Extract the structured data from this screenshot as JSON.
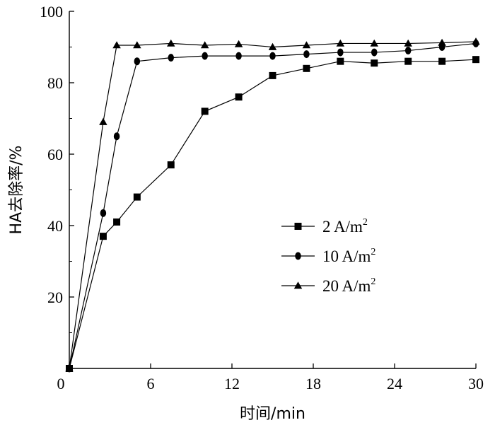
{
  "chart_data": {
    "type": "line",
    "xlabel": "时间/min",
    "ylabel": "HA去除率/%",
    "xlim": [
      0,
      30
    ],
    "ylim": [
      0,
      100
    ],
    "xticks": [
      0,
      6,
      12,
      18,
      24,
      30
    ],
    "yticks": [
      20,
      40,
      60,
      80,
      100
    ],
    "origin_label": "0",
    "grid": false,
    "legend_position": "right-middle",
    "series": [
      {
        "name": "2 A/m",
        "name_sup": "2",
        "marker": "square",
        "x": [
          0,
          2.5,
          3.5,
          5,
          7.5,
          10,
          12.5,
          15,
          17.5,
          20,
          22.5,
          25,
          27.5,
          30
        ],
        "y": [
          0,
          37,
          41,
          48,
          57,
          72,
          76,
          82,
          84,
          86,
          85.5,
          86,
          86,
          86.5
        ]
      },
      {
        "name": "10 A/m",
        "name_sup": "2",
        "marker": "circle",
        "x": [
          0,
          2.5,
          3.5,
          5,
          7.5,
          10,
          12.5,
          15,
          17.5,
          20,
          22.5,
          25,
          27.5,
          30
        ],
        "y": [
          0,
          43.5,
          65,
          86,
          87,
          87.5,
          87.5,
          87.5,
          88,
          88.5,
          88.5,
          89,
          90,
          91
        ]
      },
      {
        "name": "20 A/m",
        "name_sup": "2",
        "marker": "triangle",
        "x": [
          0,
          2.5,
          3.5,
          5,
          7.5,
          10,
          12.5,
          15,
          17.5,
          20,
          22.5,
          25,
          27.5,
          30
        ],
        "y": [
          0,
          69,
          90.5,
          90.5,
          91,
          90.5,
          90.8,
          90,
          90.5,
          91,
          91,
          91,
          91.2,
          91.5
        ]
      }
    ]
  }
}
